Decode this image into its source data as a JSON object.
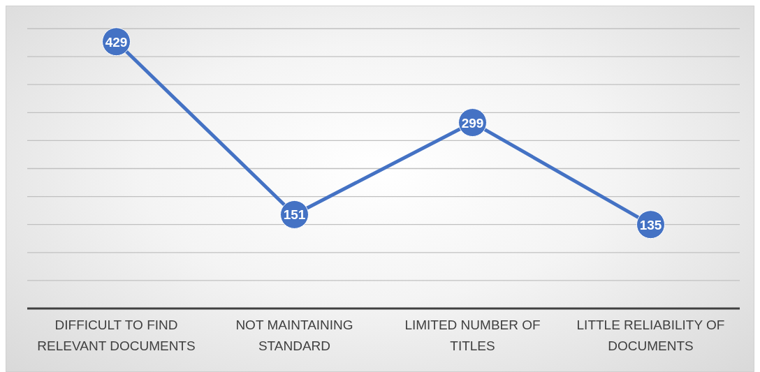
{
  "chart_data": {
    "type": "line",
    "categories": [
      "DIFFICULT TO FIND RELEVANT DOCUMENTS",
      "NOT MAINTAINING STANDARD",
      "LIMITED NUMBER OF TITLES",
      "LITTLE RELIABILITY OF DOCUMENTS"
    ],
    "values": [
      429,
      151,
      299,
      135
    ],
    "color": "#4472c4",
    "tick_labels": "x",
    "grid": "y",
    "marker": "circle",
    "line_style": "solid",
    "data_labels": true
  }
}
